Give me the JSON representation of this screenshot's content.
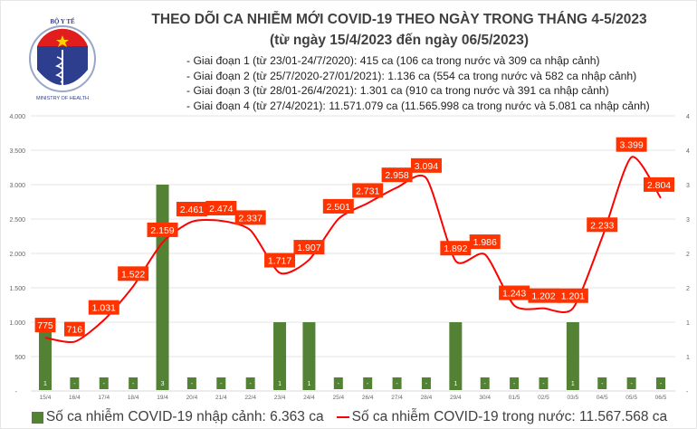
{
  "header": {
    "logo_text_top": "BỘ Y TẾ",
    "logo_text_bottom": "MINISTRY OF HEALTH",
    "title": "THEO DÕI CA NHIỄM MỚI COVID-19 THEO NGÀY TRONG THÁNG 4-5/2023",
    "subtitle": "(từ ngày 15/4/2023 đến ngày 06/5/2023)",
    "notes": [
      "- Giai đoạn 1 (từ 23/01-24/7/2020): 415 ca (106 ca trong nước và 309 ca nhập cảnh)",
      "- Giai đoạn 2 (từ 25/7/2020-27/01/2021): 1.136 ca (554 ca trong nước và 582 ca nhập cảnh)",
      "- Giai đoạn 3 (từ 28/01-26/4/2021): 1.301 ca (910 ca trong nước và 391 ca nhập cảnh)",
      "- Giai đoạn 4 (từ 27/4/2021): 11.571.079 ca (11.565.998 ca trong nước và 5.081 ca nhập cảnh)"
    ]
  },
  "chart_data": {
    "type": "bar+line",
    "categories": [
      "15/4",
      "16/4",
      "17/4",
      "18/4",
      "19/4",
      "20/4",
      "21/4",
      "22/4",
      "23/4",
      "24/4",
      "25/4",
      "26/4",
      "27/4",
      "28/4",
      "29/4",
      "30/4",
      "01/5",
      "02/5",
      "03/5",
      "04/5",
      "05/5",
      "06/5"
    ],
    "series": [
      {
        "name": "Số ca nhiễm COVID-19 nhập cảnh: 6.363 ca",
        "type": "bar",
        "axis": "right",
        "color": "#548235",
        "values": [
          1,
          0,
          0,
          0,
          3,
          0,
          0,
          0,
          1,
          1,
          0,
          0,
          0,
          0,
          1,
          0,
          0,
          0,
          1,
          0,
          0,
          0
        ],
        "labels": [
          "1",
          "-",
          "-",
          "-",
          "3",
          "-",
          "-",
          "-",
          "1",
          "1",
          "-",
          "-",
          "-",
          "-",
          "1",
          "-",
          "-",
          "-",
          "1",
          "-",
          "-",
          "-"
        ]
      },
      {
        "name": "Số ca nhiễm COVID-19 trong nước: 11.567.568 ca",
        "type": "line",
        "axis": "left",
        "color": "#ff0000",
        "values": [
          775,
          716,
          1031,
          1522,
          2159,
          2461,
          2474,
          2337,
          1717,
          1907,
          2501,
          2731,
          2958,
          3094,
          1892,
          1986,
          1243,
          1202,
          1201,
          2233,
          3399,
          2804
        ],
        "labels": [
          "775",
          "716",
          "1.031",
          "1.522",
          "2.159",
          "2.461",
          "2.474",
          "2.337",
          "1.717",
          "1.907",
          "2.501",
          "2.731",
          "2.958",
          "3.094",
          "1.892",
          "1.986",
          "1.243",
          "1.202",
          "1.201",
          "2.233",
          "3.399",
          "2.804"
        ]
      }
    ],
    "left_axis": {
      "ylim": [
        0,
        4000
      ],
      "ticks": [
        "-",
        "500",
        "1.000",
        "1.500",
        "2.000",
        "2.500",
        "3.000",
        "3.500",
        "4.000"
      ]
    },
    "right_axis": {
      "ylim": [
        0,
        4
      ],
      "ticks": [
        "-",
        "1",
        "1",
        "2",
        "2",
        "3",
        "3",
        "4",
        "4"
      ]
    },
    "grid": true,
    "legend": "bottom",
    "label_color": "#ff3300"
  }
}
